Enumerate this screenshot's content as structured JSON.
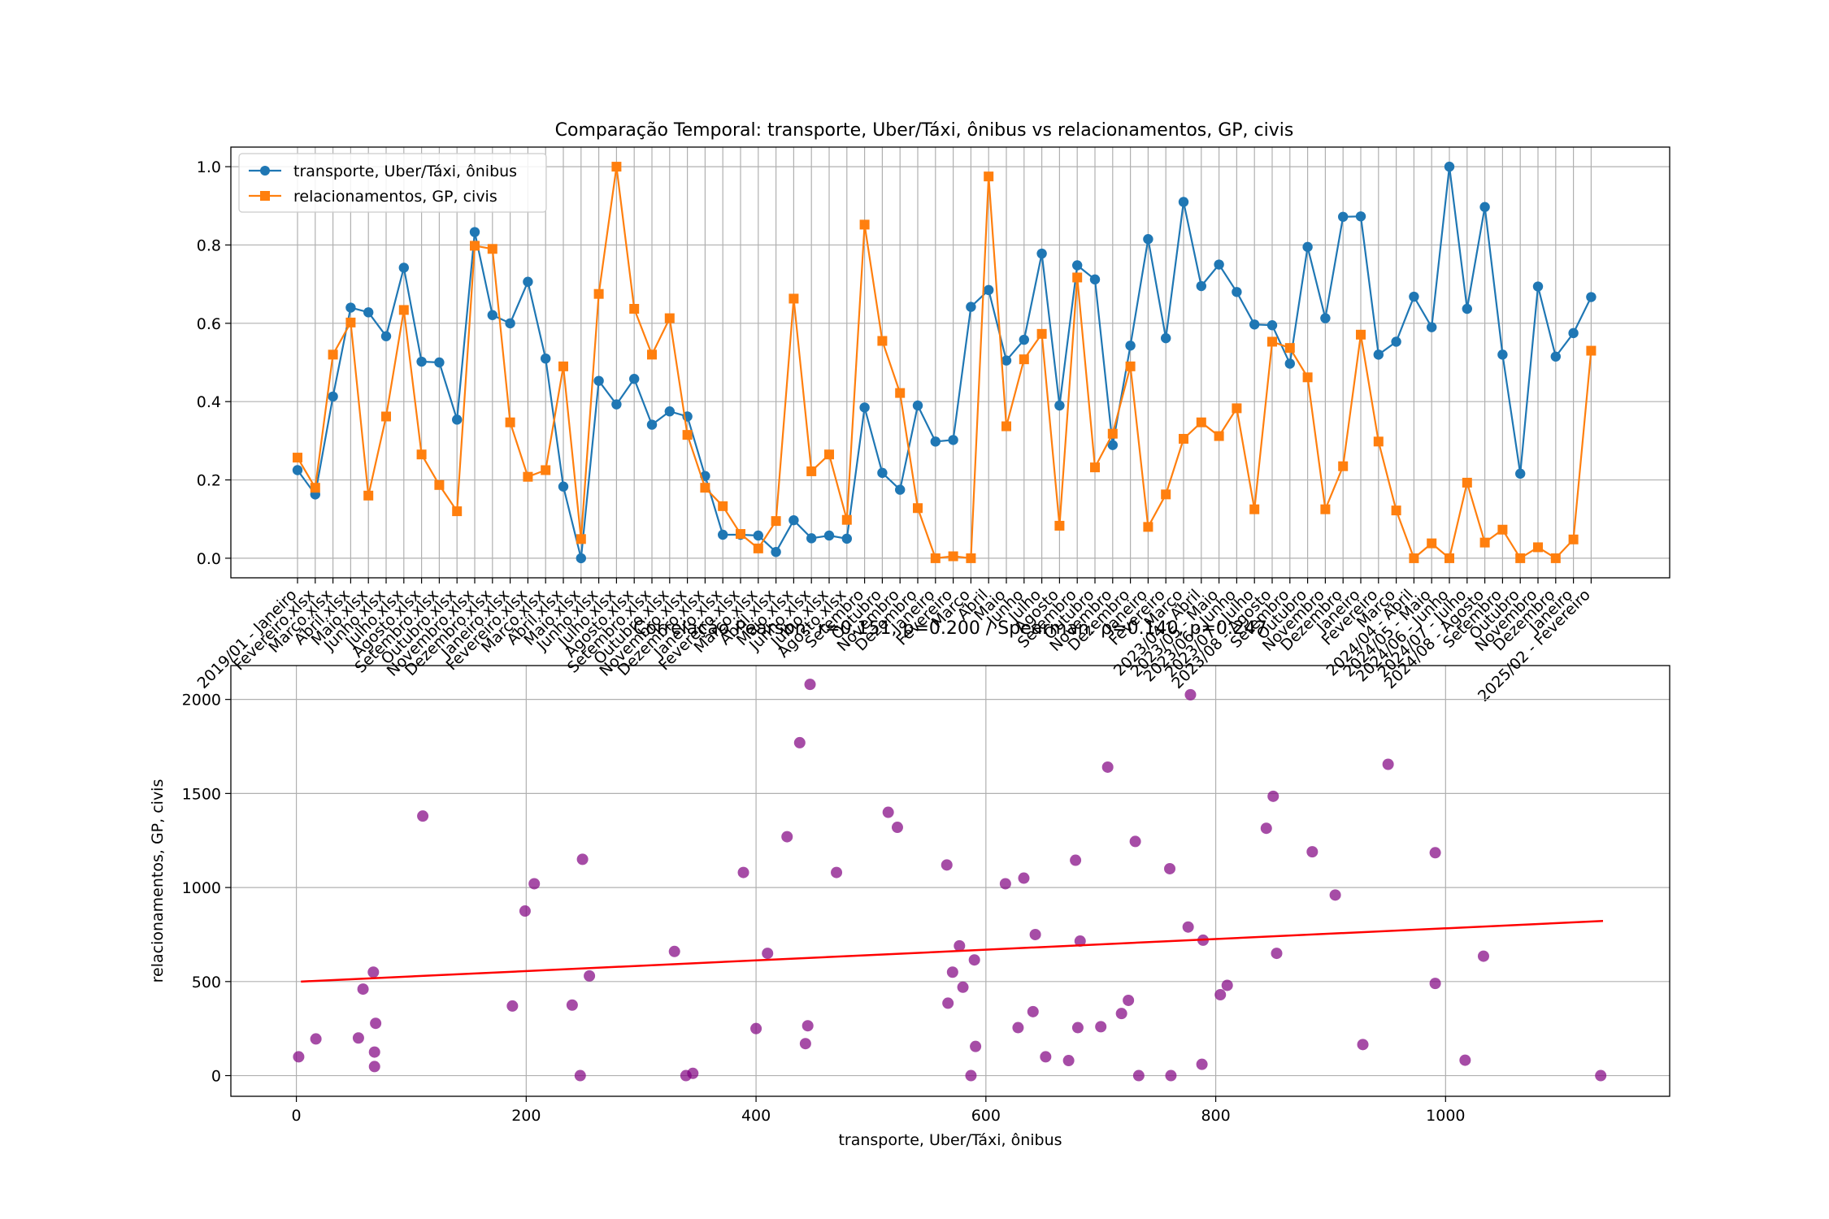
{
  "chart_data": [
    {
      "type": "line",
      "title": "Comparação Temporal: transporte, Uber/Táxi, ônibus vs relacionamentos, GP, civis",
      "xlabel": "",
      "ylabel": "",
      "ylim": [
        -0.05,
        1.05
      ],
      "yticks": [
        "0.0",
        "0.2",
        "0.4",
        "0.6",
        "0.8",
        "1.0"
      ],
      "grid": true,
      "legend_position": "upper-left",
      "x_ticklabels_note": "Tick labels are dense, overlapping and rotated ~45°; only partially legible.",
      "tick_labels_visible": [
        "2019/01 - Janeiro",
        "Fevereiro.xlsx",
        "Março.xlsx",
        "Abril.xlsx",
        "Maio.xlsx",
        "Junho.xlsx",
        "Julho.xlsx",
        "Agosto.xlsx",
        "Setembro.xlsx",
        "Outubro.xlsx",
        "Novembro.xlsx",
        "Dezembro.xlsx",
        "Janeiro.xlsx",
        "Fevereiro.xlsx",
        "Março.xlsx",
        "Abril.xlsx",
        "Maio.xlsx",
        "Junho.xlsx",
        "Julho.xlsx",
        "Agosto.xlsx",
        "Setembro.xlsx",
        "Outubro.xlsx",
        "Novembro.xlsx",
        "Dezembro.xlsx",
        "Janeiro.xlsx",
        "Fevereiro.xlsx",
        "Março.xlsx",
        "Abril.xlsx",
        "Maio.xlsx",
        "Junho.xlsx",
        "Julho.xlsx",
        "Agosto.xlsx",
        "Setembro",
        "Outubro",
        "Novembro",
        "Dezembro",
        "Janeiro",
        "Fevereiro",
        "Março",
        "Abril",
        "Maio",
        "Junho",
        "Julho",
        "Agosto",
        "Setembro",
        "Outubro",
        "Novembro",
        "Dezembro",
        "Janeiro",
        "Fevereiro",
        "Março",
        "2023/04 - Abril",
        "2023/05 - Maio",
        "2023/06 - Junho",
        "2023/07 - Julho",
        "2023/08 - Agosto",
        "Setembro",
        "Outubro",
        "Novembro",
        "Dezembro",
        "Janeiro",
        "Fevereiro",
        "Março",
        "2024/04 - Abril",
        "2024/05 - Maio",
        "2024/06 - Junho",
        "2024/07 - Julho",
        "2024/08 - Agosto",
        "Setembro",
        "Outubro",
        "Novembro",
        "Dezembro",
        "Janeiro",
        "2025/02 - Fevereiro"
      ],
      "series": [
        {
          "name": "transporte, Uber/Táxi, ônibus",
          "color": "#1f77b4",
          "marker": "circle",
          "values": [
            0.225,
            0.163,
            0.413,
            0.64,
            0.628,
            0.567,
            0.742,
            0.502,
            0.5,
            0.354,
            0.833,
            0.621,
            0.6,
            0.706,
            0.51,
            0.183,
            0.0,
            0.453,
            0.393,
            0.458,
            0.341,
            0.375,
            0.362,
            0.21,
            0.06,
            0.06,
            0.058,
            0.016,
            0.097,
            0.051,
            0.058,
            0.05,
            0.385,
            0.218,
            0.175,
            0.39,
            0.298,
            0.302,
            0.642,
            0.685,
            0.505,
            0.558,
            0.778,
            0.39,
            0.748,
            0.712,
            0.289,
            0.543,
            0.815,
            0.562,
            0.91,
            0.695,
            0.75,
            0.68,
            0.597,
            0.595,
            0.497,
            0.795,
            0.613,
            0.872,
            0.873,
            0.52,
            0.553,
            0.668,
            0.59,
            1.0,
            0.637,
            0.897,
            0.52,
            0.216,
            0.694,
            0.515,
            0.575,
            0.667
          ]
        },
        {
          "name": "relacionamentos, GP, civis",
          "color": "#ff7f0e",
          "marker": "square",
          "values": [
            0.257,
            0.18,
            0.52,
            0.602,
            0.16,
            0.362,
            0.634,
            0.265,
            0.187,
            0.12,
            0.798,
            0.79,
            0.347,
            0.208,
            0.225,
            0.49,
            0.049,
            0.675,
            1.0,
            0.637,
            0.52,
            0.613,
            0.315,
            0.18,
            0.133,
            0.062,
            0.025,
            0.095,
            0.663,
            0.222,
            0.265,
            0.098,
            0.852,
            0.555,
            0.422,
            0.128,
            0.0,
            0.005,
            0.0,
            0.975,
            0.337,
            0.508,
            0.573,
            0.083,
            0.717,
            0.232,
            0.318,
            0.49,
            0.08,
            0.163,
            0.305,
            0.347,
            0.312,
            0.383,
            0.125,
            0.553,
            0.537,
            0.462,
            0.125,
            0.235,
            0.571,
            0.298,
            0.122,
            0.0,
            0.038,
            0.0,
            0.193,
            0.04,
            0.073,
            0.0,
            0.028,
            0.0,
            0.048,
            0.53
          ]
        }
      ]
    },
    {
      "type": "scatter",
      "title": "Correlação Pearson: r=0.151, p=0.200 / Spearman: ρ=0.140, p=0.247",
      "xlabel": "transporte, Uber/Táxi, ônibus",
      "ylabel": "relacionamentos, GP, civis",
      "xlim": [
        -57,
        1195
      ],
      "ylim": [
        -110,
        2180
      ],
      "xticks": [
        0,
        200,
        400,
        600,
        800,
        1000
      ],
      "yticks": [
        0,
        500,
        1000,
        1500,
        2000
      ],
      "grid": true,
      "point_color": "#800080",
      "trendline": {
        "color": "#ff0000",
        "x": [
          4,
          1137
        ],
        "y": [
          500,
          822
        ]
      },
      "points": [
        [
          2,
          100
        ],
        [
          17,
          195
        ],
        [
          54,
          200
        ],
        [
          58,
          460
        ],
        [
          67,
          550
        ],
        [
          68,
          125
        ],
        [
          68,
          48
        ],
        [
          69,
          278
        ],
        [
          110,
          1380
        ],
        [
          188,
          370
        ],
        [
          199,
          875
        ],
        [
          207,
          1020
        ],
        [
          240,
          375
        ],
        [
          247,
          0
        ],
        [
          249,
          1150
        ],
        [
          255,
          530
        ],
        [
          329,
          660
        ],
        [
          339,
          0
        ],
        [
          345,
          12
        ],
        [
          389,
          1080
        ],
        [
          400,
          250
        ],
        [
          410,
          650
        ],
        [
          427,
          1270
        ],
        [
          438,
          1770
        ],
        [
          443,
          170
        ],
        [
          445,
          265
        ],
        [
          447,
          2080
        ],
        [
          470,
          1080
        ],
        [
          515,
          1400
        ],
        [
          523,
          1320
        ],
        [
          566,
          1120
        ],
        [
          567,
          385
        ],
        [
          571,
          550
        ],
        [
          577,
          690
        ],
        [
          580,
          470
        ],
        [
          587,
          0
        ],
        [
          590,
          615
        ],
        [
          591,
          155
        ],
        [
          617,
          1020
        ],
        [
          628,
          255
        ],
        [
          633,
          1050
        ],
        [
          641,
          340
        ],
        [
          643,
          750
        ],
        [
          652,
          100
        ],
        [
          672,
          80
        ],
        [
          678,
          1145
        ],
        [
          680,
          255
        ],
        [
          682,
          715
        ],
        [
          700,
          260
        ],
        [
          706,
          1640
        ],
        [
          718,
          330
        ],
        [
          724,
          400
        ],
        [
          730,
          1245
        ],
        [
          733,
          0
        ],
        [
          760,
          1100
        ],
        [
          761,
          0
        ],
        [
          776,
          790
        ],
        [
          778,
          2025
        ],
        [
          788,
          60
        ],
        [
          789,
          720
        ],
        [
          804,
          430
        ],
        [
          810,
          480
        ],
        [
          844,
          1315
        ],
        [
          850,
          1485
        ],
        [
          853,
          650
        ],
        [
          884,
          1190
        ],
        [
          904,
          960
        ],
        [
          928,
          165
        ],
        [
          950,
          1655
        ],
        [
          991,
          490
        ],
        [
          991,
          1185
        ],
        [
          1017,
          82
        ],
        [
          1033,
          635
        ],
        [
          1135,
          0
        ]
      ]
    }
  ]
}
